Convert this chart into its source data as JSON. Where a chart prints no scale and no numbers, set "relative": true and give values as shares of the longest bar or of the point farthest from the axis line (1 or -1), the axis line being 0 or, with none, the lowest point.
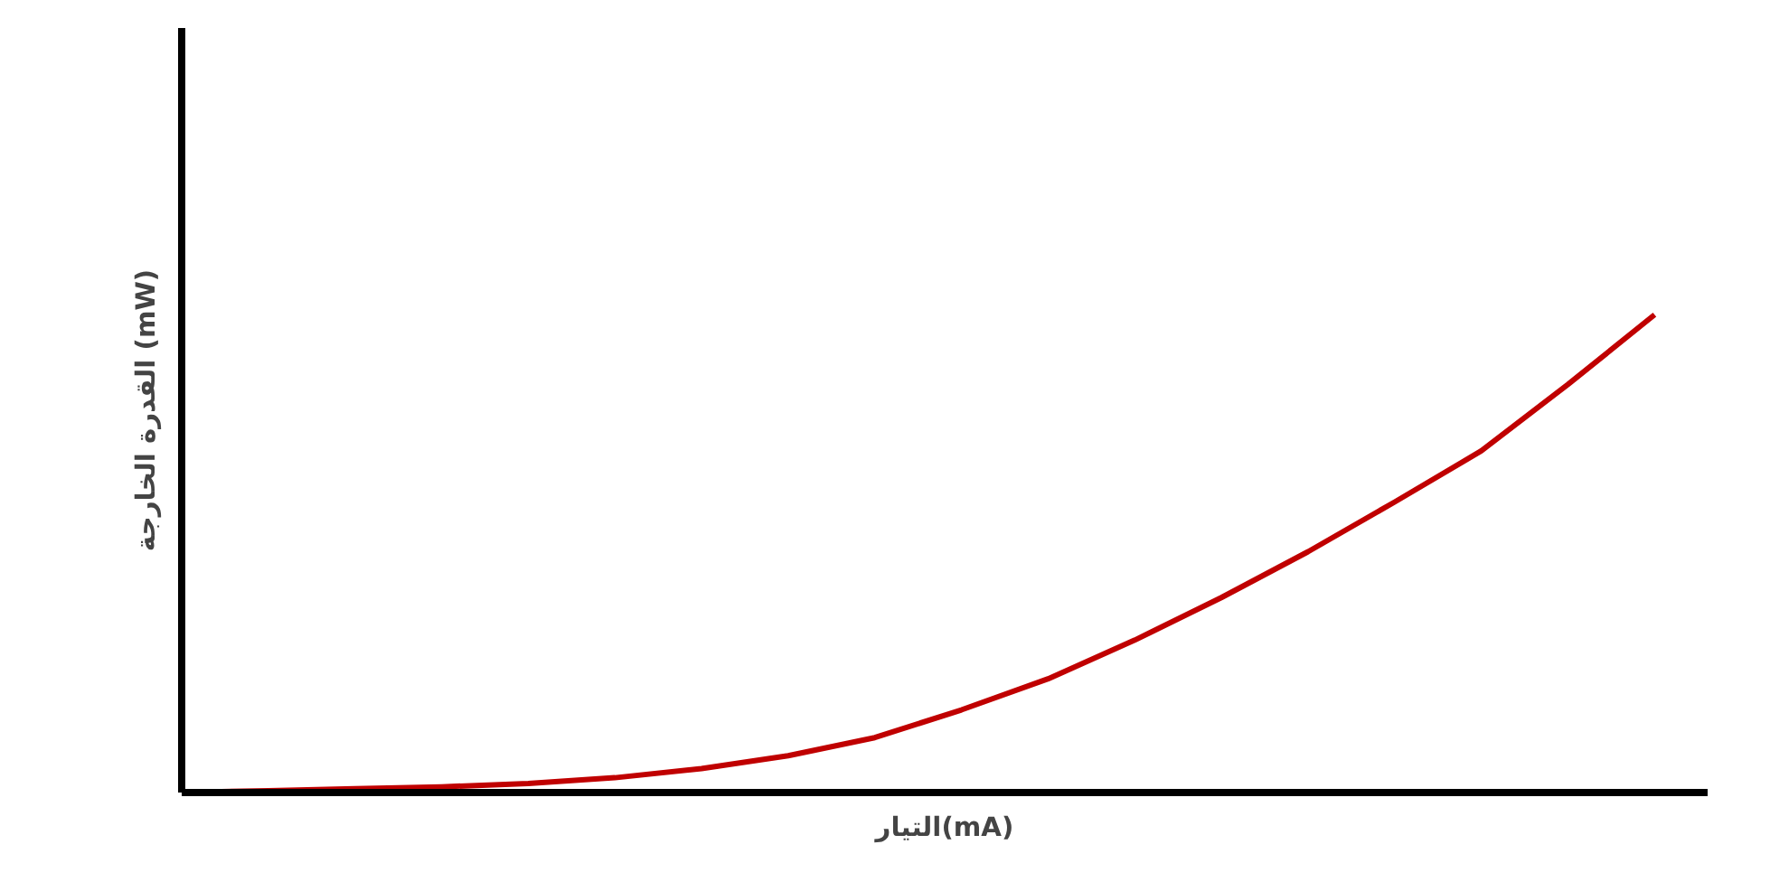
{
  "chart_data": {
    "type": "line",
    "relative": true,
    "xlabel": "التيار(mA)",
    "ylabel": "القدرة الخارجة (mW)",
    "categories": [
      null,
      null,
      null,
      null,
      null,
      null,
      null,
      null,
      null,
      null,
      null,
      null,
      null,
      null,
      null,
      null,
      null,
      null
    ],
    "series": [
      {
        "color": "#c00000",
        "values": [
          0,
          0.004,
          0.008,
          0.012,
          0.019,
          0.031,
          0.05,
          0.077,
          0.115,
          0.173,
          0.238,
          0.319,
          0.408,
          0.504,
          0.608,
          0.715,
          0.854,
          1
        ]
      }
    ],
    "grid": false,
    "marker": "none",
    "line_style": "solid"
  }
}
